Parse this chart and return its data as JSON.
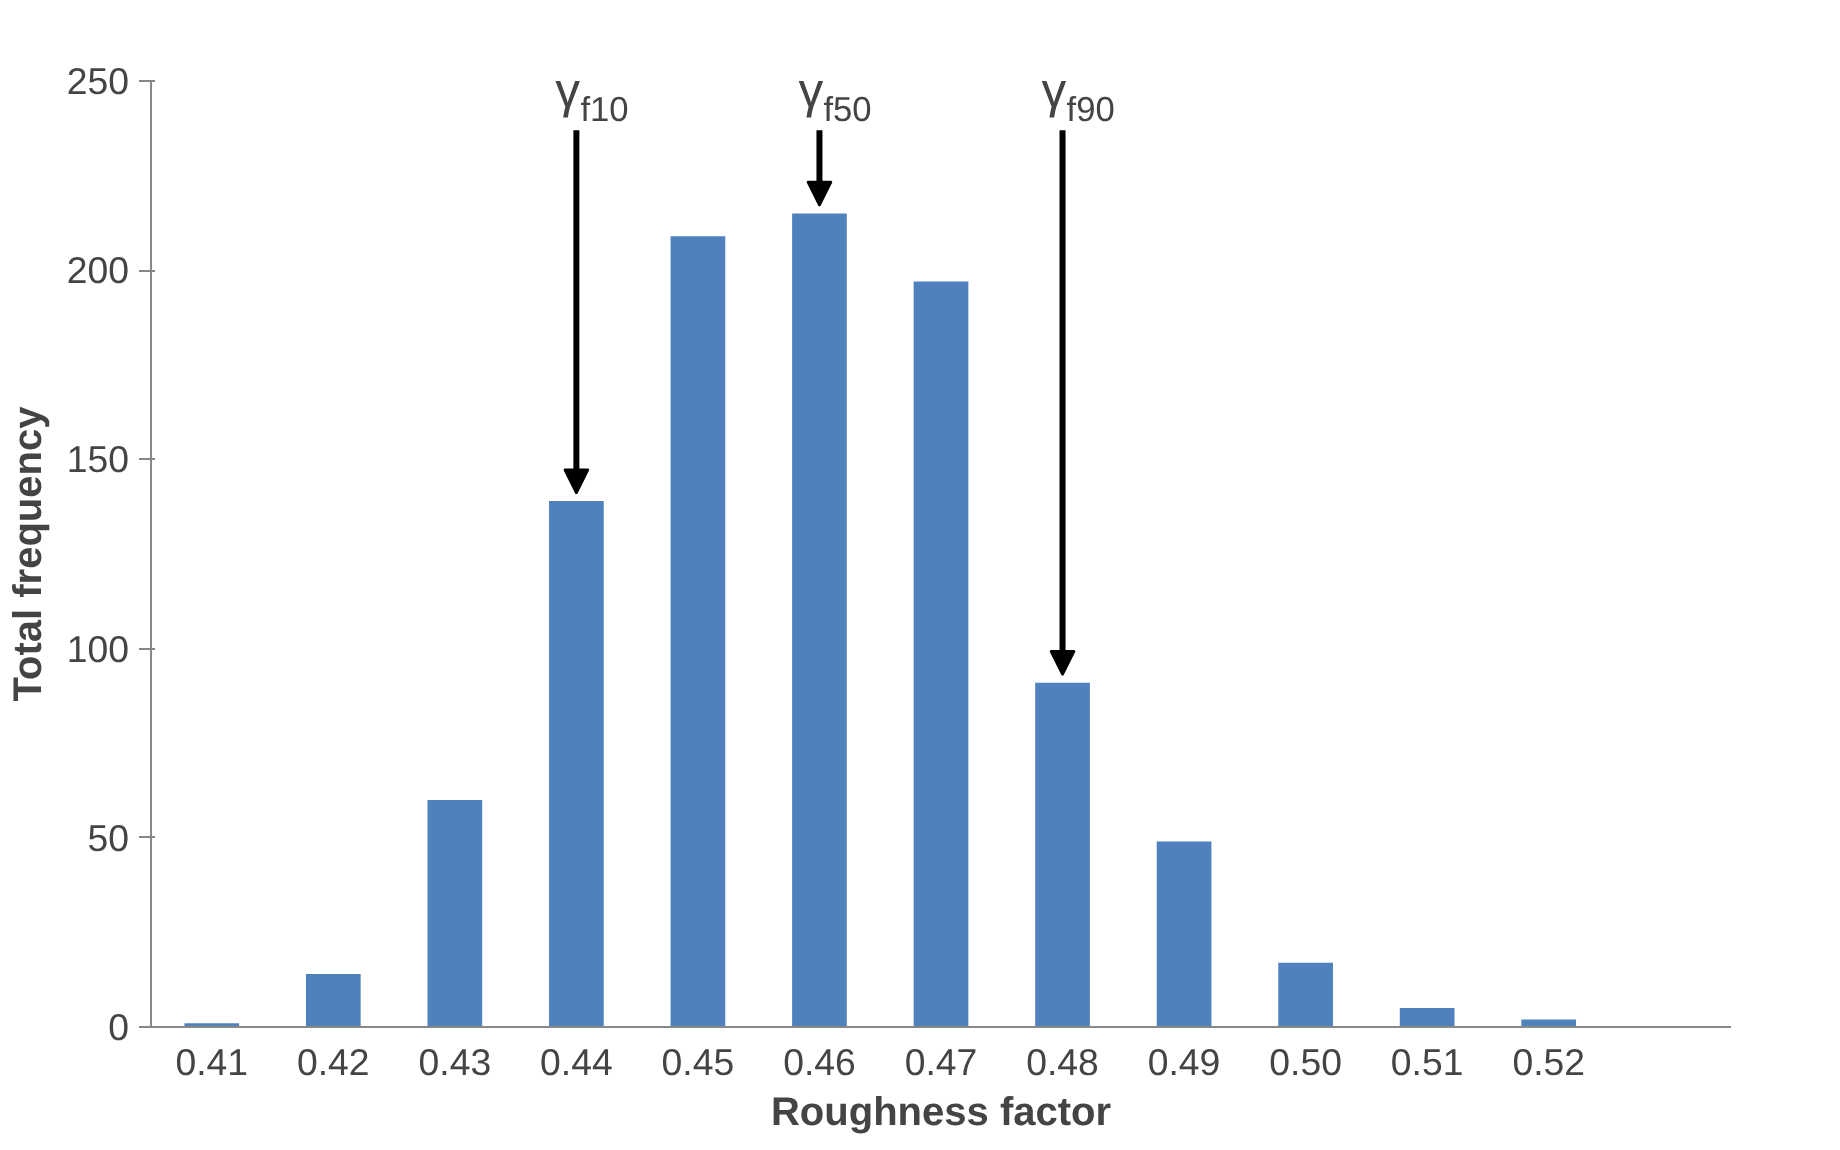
{
  "chart_data": {
    "type": "bar",
    "xlabel": "Roughness factor",
    "ylabel": "Total frequency",
    "categories": [
      "0.41",
      "0.42",
      "0.43",
      "0.44",
      "0.45",
      "0.46",
      "0.47",
      "0.48",
      "0.49",
      "0.50",
      "0.51",
      "0.52",
      null
    ],
    "values": [
      1,
      14,
      60,
      139,
      209,
      215,
      197,
      91,
      49,
      17,
      5,
      2,
      null
    ],
    "color": "#4f81bd",
    "ylim": [
      0,
      250
    ],
    "yticks": [
      0,
      50,
      100,
      150,
      200,
      250
    ],
    "grid": false,
    "annotations": [
      {
        "text": "γ$_{f10}$",
        "x": "0.44",
        "y": 139
      },
      {
        "text": "γ$_{f50}$",
        "x": "0.46",
        "y": 215
      },
      {
        "text": "γ$_{f90}$",
        "x": "0.48",
        "y": 91
      }
    ]
  }
}
